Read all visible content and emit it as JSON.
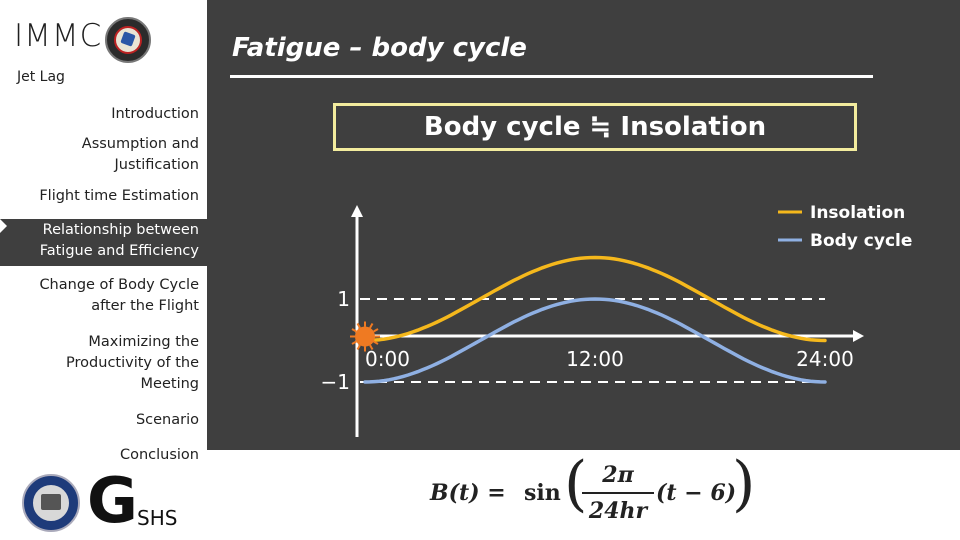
{
  "sidebar": {
    "brand": "IMMC",
    "subtitle": "Jet Lag",
    "items": [
      {
        "label": "Introduction",
        "active": false
      },
      {
        "label": "Assumption and\nJustification",
        "active": false
      },
      {
        "label": "Flight time Estimation",
        "active": false
      },
      {
        "label": "Relationship between\nFatigue and Efficiency",
        "active": true
      },
      {
        "label": "Change of Body Cycle\nafter the Flight",
        "active": false
      },
      {
        "label": "Maximizing the\nProductivity of the\nMeeting",
        "active": false
      },
      {
        "label": "Scenario",
        "active": false
      },
      {
        "label": "Conclusion",
        "active": false
      }
    ],
    "footer_logo": {
      "letter": "G",
      "rest": "SHS"
    }
  },
  "main": {
    "title": "Fatigue – body cycle",
    "headline": "Body cycle ≒ Insolation",
    "equation": {
      "lhs": "B(t) = ",
      "fn": "sin",
      "numerator": "2π",
      "denominator": "24hr",
      "arg": "(t − 6)"
    }
  },
  "chart_data": {
    "type": "line",
    "x_tick_labels": [
      "0:00",
      "12:00",
      "24:00"
    ],
    "x_ticks": [
      0,
      12,
      24
    ],
    "y_tick_labels": [
      "1",
      "−1"
    ],
    "y_ticks": [
      1,
      -1
    ],
    "xlim": [
      0,
      24
    ],
    "ylim": [
      -1,
      2.1
    ],
    "legend_position": "top-right",
    "series": [
      {
        "name": "Insolation",
        "color": "#f5b81c",
        "function": "1 - cos(2πt/24)",
        "x": [
          0,
          3,
          6,
          9,
          12,
          15,
          18,
          21,
          24
        ],
        "y": [
          0,
          0.29,
          1,
          1.71,
          2,
          1.71,
          1,
          0.29,
          0
        ]
      },
      {
        "name": "Body cycle",
        "color": "#8fb0e3",
        "function": "sin(2π(t−6)/24)",
        "x": [
          0,
          3,
          6,
          9,
          12,
          15,
          18,
          21,
          24
        ],
        "y": [
          -1,
          -0.71,
          0,
          0.71,
          1,
          0.71,
          0,
          -0.71,
          -1
        ]
      }
    ],
    "reference_lines": [
      1,
      -1
    ],
    "sun_marker_x": 0,
    "sun_color": "#ef7a22"
  }
}
